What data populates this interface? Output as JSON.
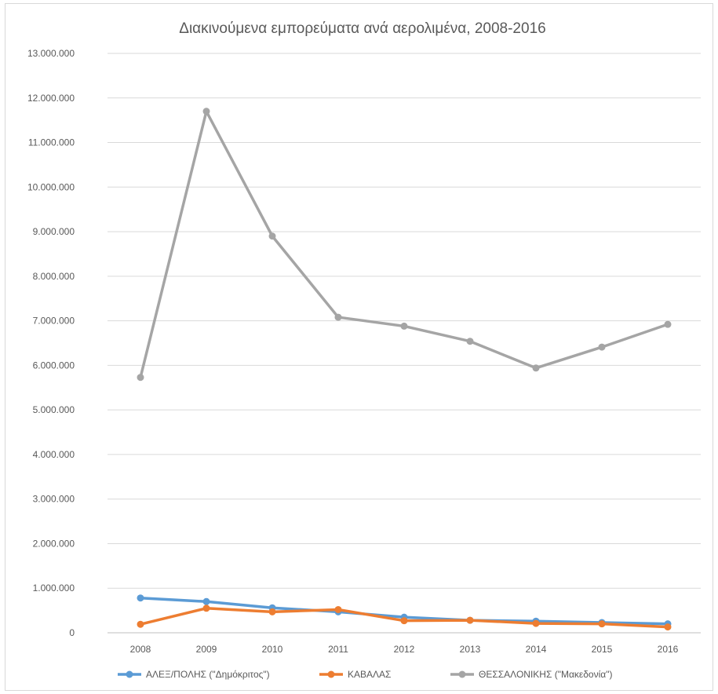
{
  "chart_data": {
    "type": "line",
    "title": "Διακινούμενα εμπορεύματα ανά αερολιμένα, 2008-2016",
    "xlabel": "",
    "ylabel": "",
    "categories": [
      "2008",
      "2009",
      "2010",
      "2011",
      "2012",
      "2013",
      "2014",
      "2015",
      "2016"
    ],
    "y_ticks": [
      "0",
      "1.000.000",
      "2.000.000",
      "3.000.000",
      "4.000.000",
      "5.000.000",
      "6.000.000",
      "7.000.000",
      "8.000.000",
      "9.000.000",
      "10.000.000",
      "11.000.000",
      "12.000.000",
      "13.000.000"
    ],
    "ylim": [
      0,
      13000000
    ],
    "grid": true,
    "legend_position": "bottom",
    "series": [
      {
        "name": "ΑΛΕΞ/ΠΟΛΗΣ (\"Δημόκριτος\")",
        "color": "#5b9bd5",
        "values": [
          780000,
          700000,
          560000,
          470000,
          350000,
          280000,
          260000,
          230000,
          200000
        ]
      },
      {
        "name": "ΚΑΒΑΛΑΣ",
        "color": "#ed7d31",
        "values": [
          190000,
          550000,
          470000,
          520000,
          270000,
          280000,
          210000,
          200000,
          130000
        ]
      },
      {
        "name": "ΘΕΣΣΑΛΟΝΙΚΗΣ (\"Μακεδονία\")",
        "color": "#a5a5a5",
        "values": [
          5730000,
          11700000,
          8900000,
          7080000,
          6880000,
          6540000,
          5940000,
          6410000,
          6920000
        ]
      }
    ]
  }
}
